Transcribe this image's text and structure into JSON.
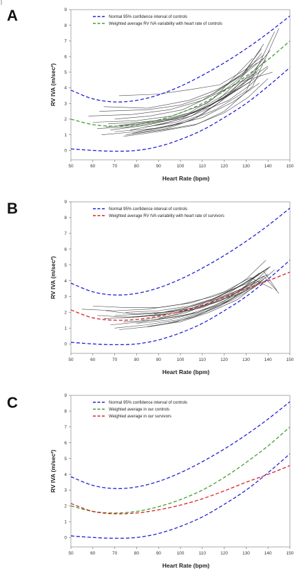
{
  "figure_mark": "]",
  "chart_data": [
    {
      "panel": "A",
      "type": "line",
      "xlabel": "Heart Rate (bpm)",
      "ylabel": "RV IVA (m/sec²)",
      "xlim": [
        50,
        150
      ],
      "ylim": [
        -0.6,
        9
      ],
      "xticks": [
        50,
        60,
        70,
        80,
        90,
        100,
        110,
        120,
        130,
        140,
        150
      ],
      "yticks": [
        0,
        1,
        2,
        3,
        4,
        5,
        6,
        7,
        8,
        9
      ],
      "legend": [
        {
          "label": "Normal 95% confidence interval of controls",
          "color": "#1f1fd6"
        },
        {
          "label": "Weighted average RV IVA variability with heart rate of controls",
          "color": "#3f9f2c"
        }
      ],
      "curves": [
        {
          "name": "Normal 95% confidence interval of controls",
          "color": "#1f1fd6",
          "x": [
            50,
            60,
            70,
            80,
            90,
            100,
            110,
            120,
            130,
            140,
            150
          ],
          "y": [
            3.85,
            3.3,
            3.1,
            3.2,
            3.55,
            4.1,
            4.8,
            5.6,
            6.5,
            7.5,
            8.6
          ]
        },
        {
          "name": "Normal 95% confidence interval of controls",
          "color": "#1f1fd6",
          "x": [
            50,
            60,
            70,
            80,
            90,
            100,
            110,
            120,
            130,
            140,
            150
          ],
          "y": [
            0.1,
            0.0,
            -0.05,
            0.0,
            0.25,
            0.7,
            1.3,
            2.1,
            3.0,
            4.1,
            5.3
          ]
        },
        {
          "name": "Weighted average RV IVA variability with heart rate of controls",
          "color": "#3f9f2c",
          "x": [
            50,
            60,
            70,
            80,
            90,
            100,
            110,
            120,
            130,
            140,
            150
          ],
          "y": [
            2.0,
            1.65,
            1.55,
            1.65,
            1.95,
            2.4,
            3.0,
            3.8,
            4.75,
            5.8,
            7.0
          ]
        }
      ],
      "individual_lines": [
        {
          "x": [
            72,
            90,
            105,
            118,
            130,
            138
          ],
          "y": [
            3.5,
            3.6,
            3.9,
            4.2,
            5.2,
            6.1
          ]
        },
        {
          "x": [
            63,
            85,
            100,
            115,
            128,
            137
          ],
          "y": [
            2.5,
            2.6,
            2.9,
            3.6,
            4.8,
            6.5
          ]
        },
        {
          "x": [
            58,
            78,
            95,
            110,
            122,
            135
          ],
          "y": [
            2.2,
            2.3,
            2.6,
            3.2,
            4.3,
            5.6
          ]
        },
        {
          "x": [
            66,
            82,
            98,
            112,
            125,
            140
          ],
          "y": [
            1.5,
            1.7,
            2.0,
            2.7,
            3.9,
            5.4
          ]
        },
        {
          "x": [
            70,
            88,
            102,
            116,
            130,
            143
          ],
          "y": [
            1.2,
            1.4,
            1.8,
            2.6,
            3.8,
            7.6
          ]
        },
        {
          "x": [
            75,
            92,
            108,
            120,
            133,
            145
          ],
          "y": [
            1.0,
            1.3,
            1.7,
            2.5,
            4.1,
            7.8
          ]
        },
        {
          "x": [
            60,
            80,
            96,
            112,
            126,
            138
          ],
          "y": [
            1.8,
            1.9,
            2.2,
            3.0,
            4.5,
            5.9
          ]
        },
        {
          "x": [
            68,
            84,
            100,
            114,
            127,
            136
          ],
          "y": [
            1.3,
            1.6,
            2.1,
            2.9,
            4.0,
            5.2
          ]
        },
        {
          "x": [
            78,
            94,
            106,
            118,
            128,
            142
          ],
          "y": [
            1.1,
            1.4,
            2.0,
            3.1,
            4.4,
            5.0
          ]
        },
        {
          "x": [
            65,
            85,
            104,
            117,
            129,
            138
          ],
          "y": [
            2.8,
            2.7,
            3.2,
            3.9,
            4.9,
            6.8
          ]
        },
        {
          "x": [
            72,
            90,
            104,
            115,
            124,
            133
          ],
          "y": [
            1.6,
            1.9,
            2.4,
            3.3,
            4.6,
            5.9
          ]
        },
        {
          "x": [
            80,
            96,
            110,
            121,
            131,
            139
          ],
          "y": [
            1.2,
            1.6,
            2.3,
            3.4,
            4.6,
            5.8
          ]
        },
        {
          "x": [
            62,
            76,
            90,
            104,
            118,
            132
          ],
          "y": [
            1.4,
            1.5,
            1.8,
            2.3,
            3.2,
            4.4
          ]
        },
        {
          "x": [
            70,
            86,
            101,
            113,
            125,
            135
          ],
          "y": [
            2.0,
            2.2,
            2.6,
            3.4,
            4.2,
            5.0
          ]
        },
        {
          "x": [
            74,
            90,
            106,
            120,
            131,
            140
          ],
          "y": [
            0.9,
            1.2,
            1.6,
            2.4,
            3.4,
            4.6
          ]
        },
        {
          "x": [
            84,
            98,
            110,
            122,
            132,
            140
          ],
          "y": [
            1.5,
            1.8,
            2.5,
            3.2,
            4.2,
            5.3
          ]
        },
        {
          "x": [
            67,
            81,
            95,
            109,
            122,
            134
          ],
          "y": [
            1.7,
            1.8,
            2.0,
            2.6,
            3.5,
            4.6
          ]
        },
        {
          "x": [
            77,
            92,
            105,
            117,
            127,
            137
          ],
          "y": [
            1.3,
            1.7,
            2.2,
            3.2,
            4.5,
            6.2
          ]
        },
        {
          "x": [
            88,
            100,
            112,
            123,
            133,
            141
          ],
          "y": [
            1.6,
            2.0,
            2.9,
            3.8,
            5.0,
            6.4
          ]
        },
        {
          "x": [
            64,
            80,
            94,
            110,
            124,
            136
          ],
          "y": [
            1.0,
            1.2,
            1.5,
            2.1,
            3.1,
            4.3
          ]
        }
      ]
    },
    {
      "panel": "B",
      "type": "line",
      "xlabel": "Heart Rate (bpm)",
      "ylabel": "RV IVA (m/sec²)",
      "xlim": [
        50,
        150
      ],
      "ylim": [
        -0.6,
        9
      ],
      "xticks": [
        50,
        60,
        70,
        80,
        90,
        100,
        110,
        120,
        130,
        140,
        150
      ],
      "yticks": [
        0,
        1,
        2,
        3,
        4,
        5,
        6,
        7,
        8,
        9
      ],
      "legend": [
        {
          "label": "Normal 95% confidence interval of controls",
          "color": "#1f1fd6"
        },
        {
          "label": "Weighted average RV IVA variability with heart rate of survivors",
          "color": "#d81f1f"
        }
      ],
      "curves": [
        {
          "name": "Normal 95% confidence interval of controls",
          "color": "#1f1fd6",
          "x": [
            50,
            60,
            70,
            80,
            90,
            100,
            110,
            120,
            130,
            140,
            150
          ],
          "y": [
            3.85,
            3.3,
            3.1,
            3.2,
            3.55,
            4.1,
            4.8,
            5.6,
            6.5,
            7.5,
            8.6
          ]
        },
        {
          "name": "Normal 95% confidence interval of controls",
          "color": "#1f1fd6",
          "x": [
            50,
            60,
            70,
            80,
            90,
            100,
            110,
            120,
            130,
            140,
            150
          ],
          "y": [
            0.1,
            0.0,
            -0.05,
            0.0,
            0.25,
            0.7,
            1.3,
            2.1,
            3.0,
            4.1,
            5.3
          ]
        },
        {
          "name": "Weighted average RV IVA variability with heart rate of survivors",
          "color": "#d81f1f",
          "x": [
            50,
            60,
            70,
            80,
            90,
            100,
            110,
            120,
            130,
            140,
            150
          ],
          "y": [
            2.15,
            1.65,
            1.5,
            1.55,
            1.75,
            2.05,
            2.45,
            2.95,
            3.5,
            4.0,
            4.55
          ]
        }
      ],
      "individual_lines": [
        {
          "x": [
            55,
            70,
            85,
            100,
            115,
            130,
            140
          ],
          "y": [
            2.2,
            2.1,
            2.2,
            2.5,
            3.0,
            3.8,
            4.8
          ]
        },
        {
          "x": [
            60,
            75,
            90,
            105,
            120,
            132,
            142
          ],
          "y": [
            2.4,
            2.3,
            2.3,
            2.6,
            3.3,
            4.2,
            3.5
          ]
        },
        {
          "x": [
            65,
            80,
            95,
            110,
            122,
            134
          ],
          "y": [
            1.6,
            1.7,
            1.9,
            2.3,
            3.0,
            3.9
          ]
        },
        {
          "x": [
            68,
            82,
            96,
            108,
            120,
            130,
            141
          ],
          "y": [
            1.2,
            1.4,
            1.7,
            2.0,
            2.6,
            3.4,
            4.9
          ]
        },
        {
          "x": [
            70,
            84,
            98,
            112,
            124,
            136
          ],
          "y": [
            1.0,
            1.2,
            1.5,
            2.1,
            2.9,
            4.5
          ]
        },
        {
          "x": [
            72,
            86,
            100,
            113,
            126,
            137
          ],
          "y": [
            0.9,
            1.1,
            1.4,
            2.0,
            2.8,
            4.0
          ]
        },
        {
          "x": [
            75,
            90,
            104,
            116,
            128,
            138,
            144
          ],
          "y": [
            2.0,
            2.1,
            2.4,
            2.9,
            3.7,
            4.6,
            3.4
          ]
        },
        {
          "x": [
            78,
            92,
            106,
            118,
            130,
            139
          ],
          "y": [
            1.7,
            1.9,
            2.3,
            3.0,
            4.1,
            5.3
          ]
        },
        {
          "x": [
            80,
            94,
            108,
            120,
            131,
            140
          ],
          "y": [
            1.3,
            1.5,
            2.0,
            2.7,
            3.8,
            4.4
          ]
        },
        {
          "x": [
            66,
            78,
            92,
            106,
            118,
            128,
            136
          ],
          "y": [
            2.1,
            1.9,
            2.0,
            2.4,
            2.9,
            3.5,
            4.0
          ]
        },
        {
          "x": [
            82,
            96,
            110,
            122,
            133,
            141
          ],
          "y": [
            1.5,
            1.8,
            2.4,
            3.2,
            4.2,
            4.9
          ]
        },
        {
          "x": [
            85,
            98,
            111,
            124,
            134,
            143
          ],
          "y": [
            1.1,
            1.4,
            2.0,
            2.8,
            3.6,
            4.7
          ]
        },
        {
          "x": [
            62,
            76,
            90,
            104,
            118,
            131
          ],
          "y": [
            1.8,
            1.7,
            1.8,
            2.1,
            2.7,
            3.6
          ]
        },
        {
          "x": [
            88,
            101,
            114,
            126,
            136
          ],
          "y": [
            1.9,
            2.2,
            2.8,
            3.6,
            4.4
          ]
        },
        {
          "x": [
            74,
            88,
            102,
            115,
            127,
            138
          ],
          "y": [
            1.4,
            1.5,
            1.8,
            2.4,
            3.2,
            4.2
          ]
        },
        {
          "x": [
            90,
            103,
            116,
            128,
            138,
            145
          ],
          "y": [
            1.6,
            2.0,
            2.7,
            3.5,
            4.3,
            3.2
          ]
        },
        {
          "x": [
            70,
            85,
            100,
            115,
            129,
            140
          ],
          "y": [
            1.8,
            1.9,
            2.1,
            2.6,
            3.3,
            4.1
          ]
        },
        {
          "x": [
            94,
            106,
            118,
            129,
            138
          ],
          "y": [
            1.3,
            1.7,
            2.4,
            3.3,
            4.1
          ]
        }
      ]
    },
    {
      "panel": "C",
      "type": "line",
      "xlabel": "Heart Rate (bpm)",
      "ylabel": "RV IVA (m/sec²)",
      "xlim": [
        50,
        150
      ],
      "ylim": [
        -0.6,
        9
      ],
      "xticks": [
        50,
        60,
        70,
        80,
        90,
        100,
        110,
        120,
        130,
        140,
        150
      ],
      "yticks": [
        0,
        1,
        2,
        3,
        4,
        5,
        6,
        7,
        8,
        9
      ],
      "legend": [
        {
          "label": "Normal 95% confidence interval of controls",
          "color": "#1f1fd6"
        },
        {
          "label": "Weighted average in our controls",
          "color": "#3f9f2c"
        },
        {
          "label": "Weighted average in our survivors",
          "color": "#d81f1f"
        }
      ],
      "curves": [
        {
          "name": "Normal 95% confidence interval of controls",
          "color": "#1f1fd6",
          "x": [
            50,
            60,
            70,
            80,
            90,
            100,
            110,
            120,
            130,
            140,
            150
          ],
          "y": [
            3.85,
            3.3,
            3.1,
            3.2,
            3.55,
            4.1,
            4.8,
            5.6,
            6.5,
            7.5,
            8.6
          ]
        },
        {
          "name": "Normal 95% confidence interval of controls",
          "color": "#1f1fd6",
          "x": [
            50,
            60,
            70,
            80,
            90,
            100,
            110,
            120,
            130,
            140,
            150
          ],
          "y": [
            0.1,
            0.0,
            -0.05,
            0.0,
            0.25,
            0.7,
            1.3,
            2.1,
            3.0,
            4.1,
            5.3
          ]
        },
        {
          "name": "Weighted average in our controls",
          "color": "#3f9f2c",
          "x": [
            50,
            60,
            70,
            80,
            90,
            100,
            110,
            120,
            130,
            140,
            150
          ],
          "y": [
            2.0,
            1.65,
            1.55,
            1.65,
            1.95,
            2.4,
            3.0,
            3.8,
            4.75,
            5.8,
            7.0
          ]
        },
        {
          "name": "Weighted average in our survivors",
          "color": "#d81f1f",
          "x": [
            50,
            60,
            70,
            80,
            90,
            100,
            110,
            120,
            130,
            140,
            150
          ],
          "y": [
            2.15,
            1.65,
            1.5,
            1.55,
            1.75,
            2.05,
            2.45,
            2.95,
            3.5,
            4.0,
            4.55
          ]
        }
      ],
      "individual_lines": []
    }
  ]
}
